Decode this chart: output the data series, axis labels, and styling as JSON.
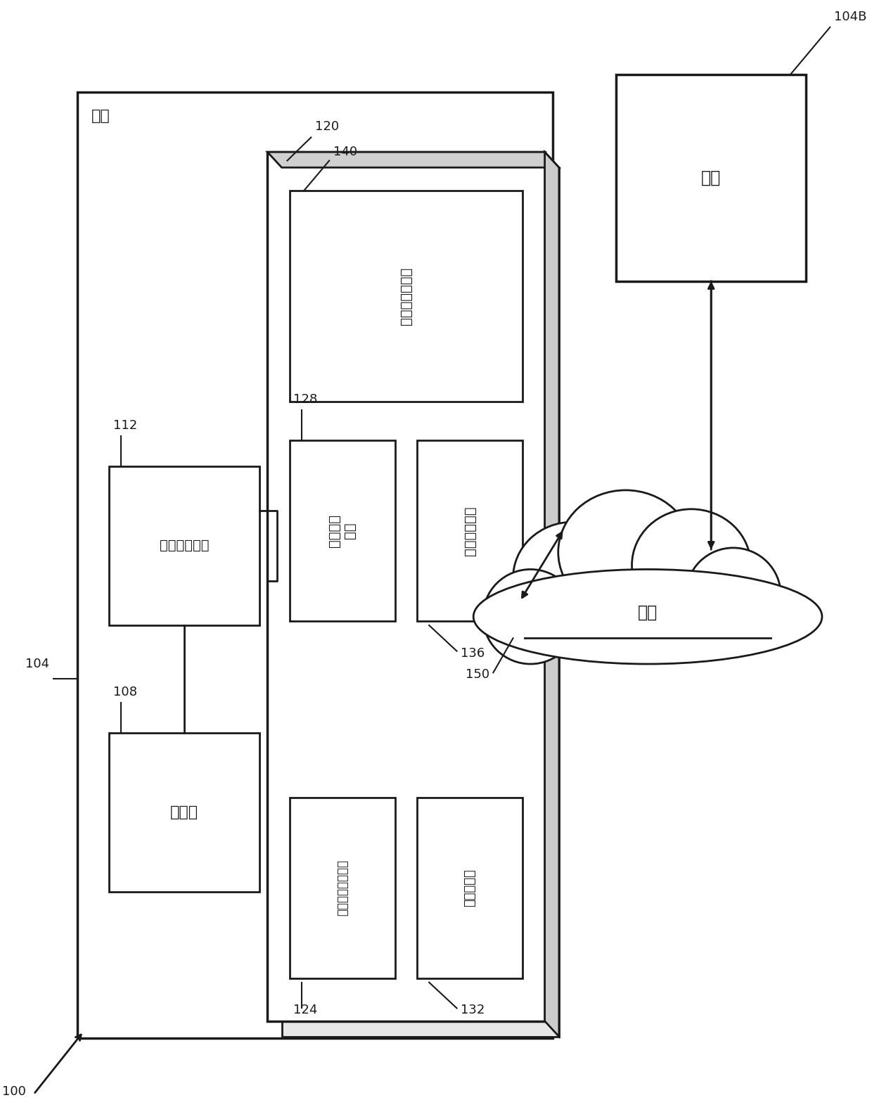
{
  "bg_color": "#ffffff",
  "line_color": "#1a1a1a",
  "fig_width": 12.4,
  "fig_height": 15.81,
  "node104_label": "节点",
  "node104B_label": "节点",
  "proc_label": "处理器",
  "net_label": "网络接口设备",
  "stored_prog_label": "所存储的程序指令",
  "shared_val_label": "値共享数据",
  "private_pt_label": "私有明文\n数据",
  "crypto_key_label": "密码密钒数据",
  "inner_product_label": "内积结果的共享",
  "network_label": "网络"
}
